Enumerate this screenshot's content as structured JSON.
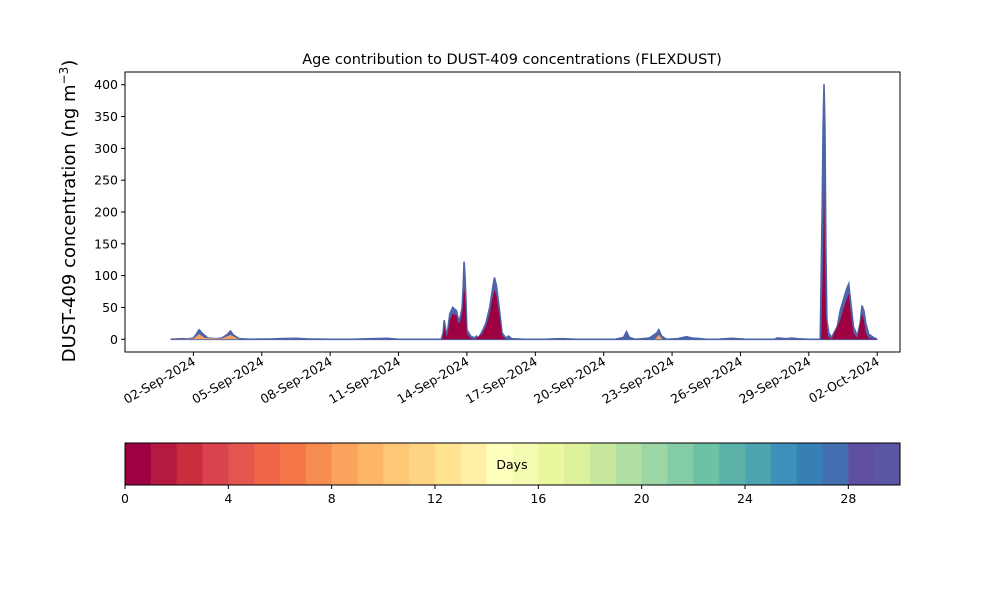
{
  "chart_data": [
    {
      "type": "area",
      "title": "Age contribution to DUST-409 concentrations (FLEXDUST)",
      "ylabel_main": "DUST-409 concentration (ng m",
      "ylabel_sup": "−3",
      "ylabel_close": ")",
      "xlabel": "",
      "ylim": [
        -20,
        420
      ],
      "x_range": [
        "2024-08-30",
        "2024-10-03"
      ],
      "yticks": [
        0,
        50,
        100,
        150,
        200,
        250,
        300,
        350,
        400
      ],
      "xticks": [
        {
          "date": "2024-09-02",
          "label": "02-Sep-2024"
        },
        {
          "date": "2024-09-05",
          "label": "05-Sep-2024"
        },
        {
          "date": "2024-09-08",
          "label": "08-Sep-2024"
        },
        {
          "date": "2024-09-11",
          "label": "11-Sep-2024"
        },
        {
          "date": "2024-09-14",
          "label": "14-Sep-2024"
        },
        {
          "date": "2024-09-17",
          "label": "17-Sep-2024"
        },
        {
          "date": "2024-09-20",
          "label": "20-Sep-2024"
        },
        {
          "date": "2024-09-23",
          "label": "23-Sep-2024"
        },
        {
          "date": "2024-09-26",
          "label": "26-Sep-2024"
        },
        {
          "date": "2024-09-29",
          "label": "29-Sep-2024"
        },
        {
          "date": "2024-10-02",
          "label": "02-Oct-2024"
        }
      ],
      "grid": false,
      "series": [
        {
          "values_note": "",
          "color": "#4e64a8",
          "points": [
            [
              "2024-09-01T00:00",
              0
            ],
            [
              "2024-09-01T12:00",
              1
            ],
            [
              "2024-09-01T18:00",
              0.5
            ],
            [
              "2024-09-02T00:00",
              2
            ],
            [
              "2024-09-02T03:00",
              8
            ],
            [
              "2024-09-02T06:00",
              15
            ],
            [
              "2024-09-02T09:00",
              10
            ],
            [
              "2024-09-02T15:00",
              2
            ],
            [
              "2024-09-03T00:00",
              1
            ],
            [
              "2024-09-03T06:00",
              2
            ],
            [
              "2024-09-03T12:00",
              8
            ],
            [
              "2024-09-03T15:00",
              13
            ],
            [
              "2024-09-03T18:00",
              7
            ],
            [
              "2024-09-04T00:00",
              1
            ],
            [
              "2024-09-04T12:00",
              0
            ],
            [
              "2024-09-05T12:00",
              0.5
            ],
            [
              "2024-09-05T18:00",
              1
            ],
            [
              "2024-09-06T12:00",
              1.5
            ],
            [
              "2024-09-07T00:00",
              0.5
            ],
            [
              "2024-09-08T00:00",
              0
            ],
            [
              "2024-09-09T00:00",
              0
            ],
            [
              "2024-09-09T12:00",
              0.5
            ],
            [
              "2024-09-10T12:00",
              1.5
            ],
            [
              "2024-09-11T00:00",
              0
            ],
            [
              "2024-09-12T00:00",
              0
            ],
            [
              "2024-09-12T21:00",
              0
            ],
            [
              "2024-09-12T23:00",
              10
            ],
            [
              "2024-09-13T00:00",
              30
            ],
            [
              "2024-09-13T03:00",
              5
            ],
            [
              "2024-09-13T06:00",
              40
            ],
            [
              "2024-09-13T09:00",
              50
            ],
            [
              "2024-09-13T13:00",
              45
            ],
            [
              "2024-09-13T15:00",
              30
            ],
            [
              "2024-09-13T17:00",
              35
            ],
            [
              "2024-09-13T19:00",
              50
            ],
            [
              "2024-09-13T20:00",
              80
            ],
            [
              "2024-09-13T21:00",
              122
            ],
            [
              "2024-09-13T22:00",
              100
            ],
            [
              "2024-09-13T23:00",
              60
            ],
            [
              "2024-09-14T00:00",
              15
            ],
            [
              "2024-09-14T04:00",
              5
            ],
            [
              "2024-09-14T08:00",
              2
            ],
            [
              "2024-09-14T10:00",
              5
            ],
            [
              "2024-09-14T12:00",
              2
            ],
            [
              "2024-09-14T16:00",
              12
            ],
            [
              "2024-09-14T20:00",
              25
            ],
            [
              "2024-09-15T00:00",
              50
            ],
            [
              "2024-09-15T03:00",
              80
            ],
            [
              "2024-09-15T05:00",
              97
            ],
            [
              "2024-09-15T07:00",
              85
            ],
            [
              "2024-09-15T10:00",
              50
            ],
            [
              "2024-09-15T13:00",
              10
            ],
            [
              "2024-09-15T17:00",
              2
            ],
            [
              "2024-09-15T20:00",
              5
            ],
            [
              "2024-09-15T23:00",
              1
            ],
            [
              "2024-09-16T12:00",
              0
            ],
            [
              "2024-09-17T12:00",
              0
            ],
            [
              "2024-09-17T18:00",
              0.5
            ],
            [
              "2024-09-18T06:00",
              1
            ],
            [
              "2024-09-18T18:00",
              0
            ],
            [
              "2024-09-19T00:00",
              0
            ],
            [
              "2024-09-20T12:00",
              0
            ],
            [
              "2024-09-20T21:00",
              3
            ],
            [
              "2024-09-21T00:00",
              12
            ],
            [
              "2024-09-21T03:00",
              3
            ],
            [
              "2024-09-21T09:00",
              0
            ],
            [
              "2024-09-22T00:00",
              2
            ],
            [
              "2024-09-22T08:00",
              10
            ],
            [
              "2024-09-22T10:00",
              15
            ],
            [
              "2024-09-22T13:00",
              5
            ],
            [
              "2024-09-22T18:00",
              0
            ],
            [
              "2024-09-23T06:00",
              1
            ],
            [
              "2024-09-23T12:00",
              3
            ],
            [
              "2024-09-23T15:00",
              4
            ],
            [
              "2024-09-23T21:00",
              2
            ],
            [
              "2024-09-24T06:00",
              1
            ],
            [
              "2024-09-24T12:00",
              0
            ],
            [
              "2024-09-25T00:00",
              0
            ],
            [
              "2024-09-25T15:00",
              1.5
            ],
            [
              "2024-09-26T06:00",
              0
            ],
            [
              "2024-09-27T12:00",
              0
            ],
            [
              "2024-09-27T15:00",
              2
            ],
            [
              "2024-09-28T00:00",
              1
            ],
            [
              "2024-09-28T06:00",
              2
            ],
            [
              "2024-09-28T12:00",
              1
            ],
            [
              "2024-09-29T00:00",
              0
            ],
            [
              "2024-09-29T09:00",
              0
            ],
            [
              "2024-09-29T12:00",
              0
            ],
            [
              "2024-09-29T14:00",
              200
            ],
            [
              "2024-09-29T15:00",
              330
            ],
            [
              "2024-09-29T16:00",
              401
            ],
            [
              "2024-09-29T17:00",
              330
            ],
            [
              "2024-09-29T18:00",
              140
            ],
            [
              "2024-09-29T19:00",
              30
            ],
            [
              "2024-09-29T21:00",
              10
            ],
            [
              "2024-09-30T00:00",
              3
            ],
            [
              "2024-09-30T06:00",
              20
            ],
            [
              "2024-09-30T09:00",
              45
            ],
            [
              "2024-09-30T13:00",
              65
            ],
            [
              "2024-09-30T16:00",
              80
            ],
            [
              "2024-09-30T18:00",
              87
            ],
            [
              "2024-09-30T20:00",
              60
            ],
            [
              "2024-09-30T23:00",
              20
            ],
            [
              "2024-10-01T03:00",
              5
            ],
            [
              "2024-10-01T06:00",
              25
            ],
            [
              "2024-10-01T08:00",
              53
            ],
            [
              "2024-10-01T10:00",
              45
            ],
            [
              "2024-10-01T12:00",
              25
            ],
            [
              "2024-10-01T15:00",
              8
            ],
            [
              "2024-10-01T21:00",
              2
            ],
            [
              "2024-10-02T00:00",
              0
            ]
          ]
        },
        {
          "color": "#9e0142",
          "points": [
            [
              "2024-09-01T00:00",
              0
            ],
            [
              "2024-09-02T03:00",
              0
            ],
            [
              "2024-09-12T22:00",
              0
            ],
            [
              "2024-09-13T00:00",
              20
            ],
            [
              "2024-09-13T03:00",
              3
            ],
            [
              "2024-09-13T06:00",
              30
            ],
            [
              "2024-09-13T09:00",
              40
            ],
            [
              "2024-09-13T13:00",
              38
            ],
            [
              "2024-09-13T15:00",
              25
            ],
            [
              "2024-09-13T17:00",
              28
            ],
            [
              "2024-09-13T19:00",
              40
            ],
            [
              "2024-09-13T21:00",
              80
            ],
            [
              "2024-09-13T22:00",
              70
            ],
            [
              "2024-09-13T23:00",
              40
            ],
            [
              "2024-09-14T00:00",
              8
            ],
            [
              "2024-09-14T04:00",
              2
            ],
            [
              "2024-09-14T08:00",
              0
            ],
            [
              "2024-09-14T16:00",
              8
            ],
            [
              "2024-09-14T20:00",
              20
            ],
            [
              "2024-09-15T00:00",
              40
            ],
            [
              "2024-09-15T03:00",
              65
            ],
            [
              "2024-09-15T05:00",
              78
            ],
            [
              "2024-09-15T07:00",
              70
            ],
            [
              "2024-09-15T10:00",
              40
            ],
            [
              "2024-09-15T13:00",
              6
            ],
            [
              "2024-09-15T17:00",
              0
            ],
            [
              "2024-09-21T00:00",
              0
            ],
            [
              "2024-09-29T13:00",
              0
            ],
            [
              "2024-09-29T15:00",
              130
            ],
            [
              "2024-09-29T16:00",
              245
            ],
            [
              "2024-09-29T17:00",
              140
            ],
            [
              "2024-09-29T18:00",
              40
            ],
            [
              "2024-09-29T20:00",
              5
            ],
            [
              "2024-09-30T00:00",
              0
            ],
            [
              "2024-09-30T09:00",
              30
            ],
            [
              "2024-09-30T13:00",
              50
            ],
            [
              "2024-09-30T18:00",
              72
            ],
            [
              "2024-09-30T20:00",
              45
            ],
            [
              "2024-09-30T23:00",
              10
            ],
            [
              "2024-10-01T03:00",
              2
            ],
            [
              "2024-10-01T08:00",
              40
            ],
            [
              "2024-10-01T10:00",
              30
            ],
            [
              "2024-10-01T12:00",
              10
            ],
            [
              "2024-10-01T15:00",
              2
            ],
            [
              "2024-10-02T00:00",
              0
            ]
          ]
        },
        {
          "color": "#f4a261",
          "points": [
            [
              "2024-09-01T00:00",
              0
            ],
            [
              "2024-09-02T00:00",
              1
            ],
            [
              "2024-09-02T06:00",
              8
            ],
            [
              "2024-09-02T12:00",
              2
            ],
            [
              "2024-09-03T06:00",
              1
            ],
            [
              "2024-09-03T15:00",
              7
            ],
            [
              "2024-09-04T00:00",
              0
            ],
            [
              "2024-09-22T06:00",
              0
            ],
            [
              "2024-09-22T10:00",
              7
            ],
            [
              "2024-09-22T14:00",
              0
            ],
            [
              "2024-10-02T00:00",
              0
            ]
          ]
        }
      ]
    },
    {
      "type": "heatmap",
      "label": "Days",
      "vmin": 0,
      "vmax": 30,
      "ticks": [
        0,
        4,
        8,
        12,
        16,
        20,
        24,
        28
      ],
      "colors": [
        "#9e0142",
        "#b4193f",
        "#c92e3f",
        "#d8434c",
        "#e55550",
        "#ee6548",
        "#f57748",
        "#f88d52",
        "#fba35d",
        "#fdb567",
        "#fec776",
        "#fed585",
        "#fee391",
        "#fff0a6",
        "#ffffbe",
        "#f5fab2",
        "#eaf79e",
        "#dcf199",
        "#c8e89e",
        "#b2e0a2",
        "#9bd6a4",
        "#83cca5",
        "#6bc2a5",
        "#5cb2a8",
        "#4da4b1",
        "#3c91b9",
        "#3680b6",
        "#436eaf",
        "#5e4fa2",
        "#5a55a5"
      ]
    }
  ]
}
